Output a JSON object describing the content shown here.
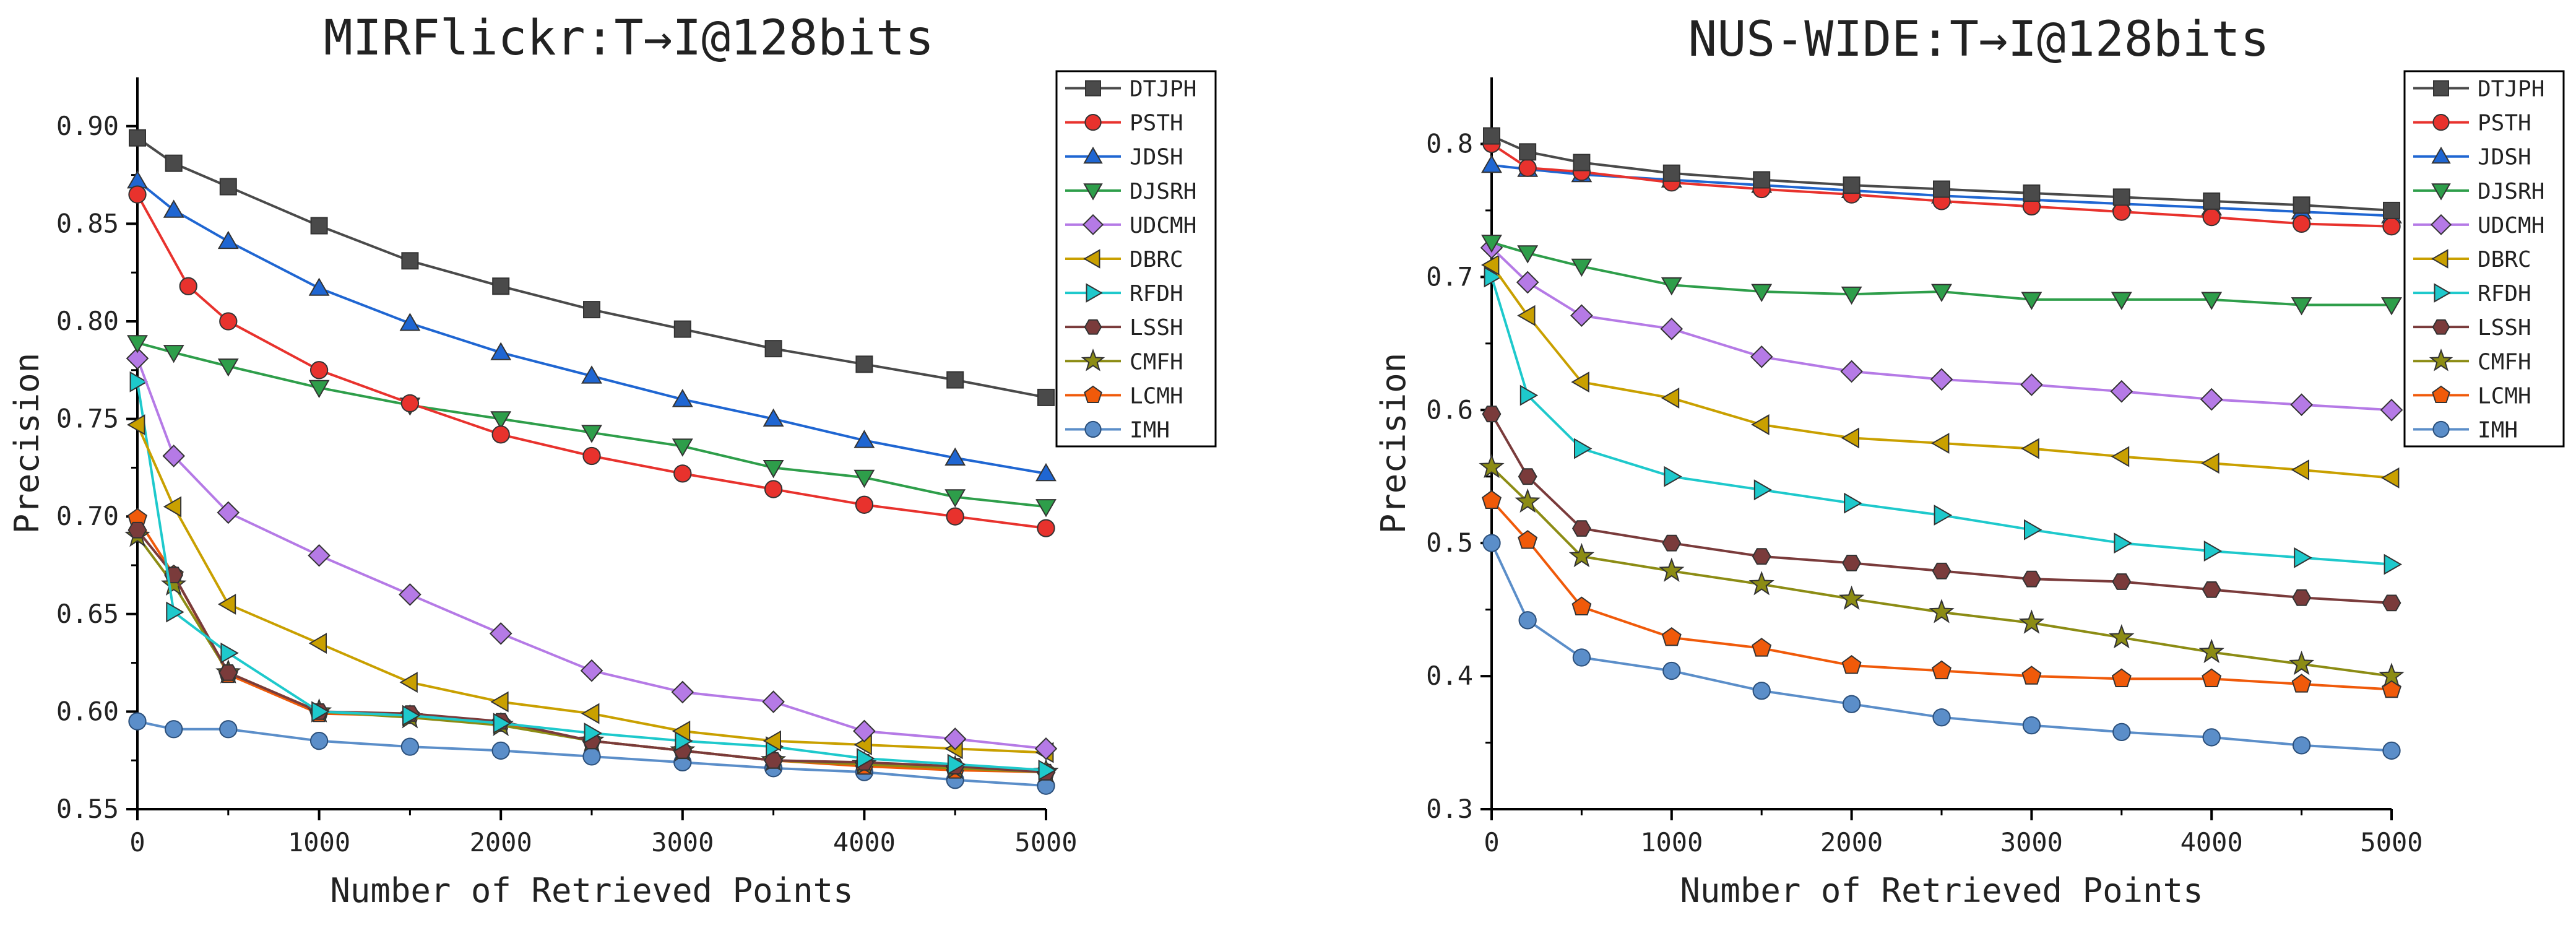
{
  "chart_data": [
    {
      "type": "line",
      "title": "MIRFlickr:T→I@128bits",
      "xlabel": "Number of Retrieved Points",
      "ylabel": "Precision",
      "xlim": [
        0,
        5000
      ],
      "ylim": [
        0.55,
        0.925
      ],
      "xticks": [
        0,
        1000,
        2000,
        3000,
        4000,
        5000
      ],
      "yticks": [
        0.55,
        0.6,
        0.65,
        0.7,
        0.75,
        0.8,
        0.85,
        0.9
      ],
      "ytick_labels": [
        "0.55",
        "0.60",
        "0.65",
        "0.70",
        "0.75",
        "0.80",
        "0.85",
        "0.90"
      ],
      "legend_position": "top-right",
      "series": [
        {
          "name": "DTJPH",
          "x": [
            0,
            200,
            500,
            1000,
            1500,
            2000,
            2500,
            3000,
            3500,
            4000,
            4500,
            5000
          ],
          "values": [
            0.894,
            0.881,
            0.869,
            0.849,
            0.831,
            0.818,
            0.806,
            0.796,
            0.786,
            0.778,
            0.77,
            0.761
          ]
        },
        {
          "name": "PSTH",
          "x": [
            0,
            280,
            500,
            1000,
            1500,
            2000,
            2500,
            3000,
            3500,
            4000,
            4500,
            5000
          ],
          "values": [
            0.865,
            0.818,
            0.8,
            0.775,
            0.758,
            0.742,
            0.731,
            0.722,
            0.714,
            0.706,
            0.7,
            0.694
          ]
        },
        {
          "name": "JDSH",
          "x": [
            0,
            200,
            500,
            1000,
            1500,
            2000,
            2500,
            3000,
            3500,
            4000,
            4500,
            5000
          ],
          "values": [
            0.872,
            0.857,
            0.841,
            0.817,
            0.799,
            0.784,
            0.772,
            0.76,
            0.75,
            0.739,
            0.73,
            0.722
          ]
        },
        {
          "name": "DJSRH",
          "x": [
            0,
            200,
            500,
            1000,
            1500,
            2000,
            2500,
            3000,
            3500,
            4000,
            4500,
            5000
          ],
          "values": [
            0.789,
            0.784,
            0.777,
            0.766,
            0.757,
            0.75,
            0.743,
            0.736,
            0.725,
            0.72,
            0.71,
            0.705
          ]
        },
        {
          "name": "UDCMH",
          "x": [
            0,
            200,
            500,
            1000,
            1500,
            2000,
            2500,
            3000,
            3500,
            4000,
            4500,
            5000
          ],
          "values": [
            0.781,
            0.731,
            0.702,
            0.68,
            0.66,
            0.64,
            0.621,
            0.61,
            0.605,
            0.59,
            0.586,
            0.581
          ]
        },
        {
          "name": "DBRC",
          "x": [
            0,
            200,
            500,
            1000,
            1500,
            2000,
            2500,
            3000,
            3500,
            4000,
            4500,
            5000
          ],
          "values": [
            0.747,
            0.705,
            0.655,
            0.635,
            0.615,
            0.605,
            0.599,
            0.59,
            0.585,
            0.583,
            0.581,
            0.579
          ]
        },
        {
          "name": "RFDH",
          "x": [
            0,
            200,
            500,
            1000,
            1500,
            2000,
            2500,
            3000,
            3500,
            4000,
            4500,
            5000
          ],
          "values": [
            0.769,
            0.651,
            0.63,
            0.6,
            0.598,
            0.594,
            0.589,
            0.585,
            0.582,
            0.576,
            0.573,
            0.57
          ]
        },
        {
          "name": "LSSH",
          "x": [
            0,
            200,
            500,
            1000,
            1500,
            2000,
            2500,
            3000,
            3500,
            4000,
            4500,
            5000
          ],
          "values": [
            0.693,
            0.67,
            0.62,
            0.6,
            0.599,
            0.595,
            0.585,
            0.58,
            0.575,
            0.574,
            0.572,
            0.569
          ]
        },
        {
          "name": "CMFH",
          "x": [
            0,
            200,
            500,
            1000,
            1500,
            2000,
            2500,
            3000,
            3500,
            4000,
            4500,
            5000
          ],
          "values": [
            0.69,
            0.665,
            0.62,
            0.6,
            0.597,
            0.593,
            0.585,
            0.58,
            0.575,
            0.573,
            0.571,
            0.569
          ]
        },
        {
          "name": "LCMH",
          "x": [
            0,
            200,
            500,
            1000,
            1500,
            2000,
            2500,
            3000,
            3500,
            4000,
            4500,
            5000
          ],
          "values": [
            0.699,
            0.67,
            0.619,
            0.599,
            0.598,
            0.594,
            0.585,
            0.58,
            0.575,
            0.572,
            0.57,
            0.569
          ]
        },
        {
          "name": "IMH",
          "x": [
            0,
            200,
            500,
            1000,
            1500,
            2000,
            2500,
            3000,
            3500,
            4000,
            4500,
            5000
          ],
          "values": [
            0.595,
            0.591,
            0.591,
            0.585,
            0.582,
            0.58,
            0.577,
            0.574,
            0.571,
            0.569,
            0.565,
            0.562
          ]
        }
      ]
    },
    {
      "type": "line",
      "title": "NUS-WIDE:T→I@128bits",
      "xlabel": "Number of Retrieved Points",
      "ylabel": "Precision",
      "xlim": [
        0,
        5000
      ],
      "ylim": [
        0.3,
        0.85
      ],
      "xticks": [
        0,
        1000,
        2000,
        3000,
        4000,
        5000
      ],
      "yticks": [
        0.3,
        0.4,
        0.5,
        0.6,
        0.7,
        0.8
      ],
      "ytick_labels": [
        "0.3",
        "0.4",
        "0.5",
        "0.6",
        "0.7",
        "0.8"
      ],
      "legend_position": "top-right",
      "series": [
        {
          "name": "DTJPH",
          "x": [
            0,
            200,
            500,
            1000,
            1500,
            2000,
            2500,
            3000,
            3500,
            4000,
            4500,
            5000
          ],
          "values": [
            0.806,
            0.794,
            0.786,
            0.778,
            0.773,
            0.769,
            0.766,
            0.763,
            0.76,
            0.757,
            0.754,
            0.75
          ]
        },
        {
          "name": "PSTH",
          "x": [
            0,
            200,
            500,
            1000,
            1500,
            2000,
            2500,
            3000,
            3500,
            4000,
            4500,
            5000
          ],
          "values": [
            0.8,
            0.782,
            0.779,
            0.771,
            0.766,
            0.762,
            0.757,
            0.753,
            0.749,
            0.745,
            0.74,
            0.738
          ]
        },
        {
          "name": "JDSH",
          "x": [
            0,
            200,
            500,
            1000,
            1500,
            2000,
            2500,
            3000,
            3500,
            4000,
            4500,
            5000
          ],
          "values": [
            0.784,
            0.781,
            0.777,
            0.773,
            0.769,
            0.765,
            0.761,
            0.758,
            0.755,
            0.752,
            0.749,
            0.746
          ]
        },
        {
          "name": "DJSRH",
          "x": [
            0,
            200,
            500,
            1000,
            1500,
            2000,
            2500,
            3000,
            3500,
            4000,
            4500,
            5000
          ],
          "values": [
            0.726,
            0.718,
            0.708,
            0.694,
            0.689,
            0.687,
            0.689,
            0.683,
            0.683,
            0.683,
            0.679,
            0.679
          ]
        },
        {
          "name": "UDCMH",
          "x": [
            0,
            200,
            500,
            1000,
            1500,
            2000,
            2500,
            3000,
            3500,
            4000,
            4500,
            5000
          ],
          "values": [
            0.722,
            0.696,
            0.671,
            0.661,
            0.64,
            0.629,
            0.623,
            0.619,
            0.614,
            0.608,
            0.604,
            0.6
          ]
        },
        {
          "name": "DBRC",
          "x": [
            0,
            200,
            500,
            1000,
            1500,
            2000,
            2500,
            3000,
            3500,
            4000,
            4500,
            5000
          ],
          "values": [
            0.709,
            0.671,
            0.621,
            0.609,
            0.589,
            0.579,
            0.575,
            0.571,
            0.565,
            0.56,
            0.555,
            0.549
          ]
        },
        {
          "name": "RFDH",
          "x": [
            0,
            200,
            500,
            1000,
            1500,
            2000,
            2500,
            3000,
            3500,
            4000,
            4500,
            5000
          ],
          "values": [
            0.7,
            0.611,
            0.571,
            0.55,
            0.54,
            0.53,
            0.521,
            0.51,
            0.5,
            0.494,
            0.489,
            0.484
          ]
        },
        {
          "name": "LSSH",
          "x": [
            0,
            200,
            500,
            1000,
            1500,
            2000,
            2500,
            3000,
            3500,
            4000,
            4500,
            5000
          ],
          "values": [
            0.597,
            0.55,
            0.511,
            0.5,
            0.49,
            0.485,
            0.479,
            0.473,
            0.471,
            0.465,
            0.459,
            0.455
          ]
        },
        {
          "name": "CMFH",
          "x": [
            0,
            200,
            500,
            1000,
            1500,
            2000,
            2500,
            3000,
            3500,
            4000,
            4500,
            5000
          ],
          "values": [
            0.557,
            0.531,
            0.49,
            0.479,
            0.469,
            0.458,
            0.448,
            0.44,
            0.429,
            0.418,
            0.409,
            0.4
          ]
        },
        {
          "name": "LCMH",
          "x": [
            0,
            200,
            500,
            1000,
            1500,
            2000,
            2500,
            3000,
            3500,
            4000,
            4500,
            5000
          ],
          "values": [
            0.532,
            0.502,
            0.452,
            0.429,
            0.421,
            0.408,
            0.404,
            0.4,
            0.398,
            0.398,
            0.394,
            0.39
          ]
        },
        {
          "name": "IMH",
          "x": [
            0,
            200,
            500,
            1000,
            1500,
            2000,
            2500,
            3000,
            3500,
            4000,
            4500,
            5000
          ],
          "values": [
            0.5,
            0.442,
            0.414,
            0.404,
            0.389,
            0.379,
            0.369,
            0.363,
            0.358,
            0.354,
            0.348,
            0.344
          ]
        }
      ]
    }
  ],
  "series_styles": {
    "DTJPH": {
      "color": "#4a4a4a",
      "marker": "square"
    },
    "PSTH": {
      "color": "#e8322d",
      "marker": "circle"
    },
    "JDSH": {
      "color": "#1f66d2",
      "marker": "triangle-up"
    },
    "DJSRH": {
      "color": "#2e9e4a",
      "marker": "triangle-down"
    },
    "UDCMH": {
      "color": "#b57ae6",
      "marker": "diamond"
    },
    "DBRC": {
      "color": "#c9a000",
      "marker": "triangle-left"
    },
    "RFDH": {
      "color": "#1ec9cc",
      "marker": "triangle-right"
    },
    "LSSH": {
      "color": "#7a3b3b",
      "marker": "hexagon"
    },
    "CMFH": {
      "color": "#8c8c14",
      "marker": "star"
    },
    "LCMH": {
      "color": "#f05a0a",
      "marker": "pentagon"
    },
    "IMH": {
      "color": "#5b8ec9",
      "marker": "circle-light"
    }
  }
}
